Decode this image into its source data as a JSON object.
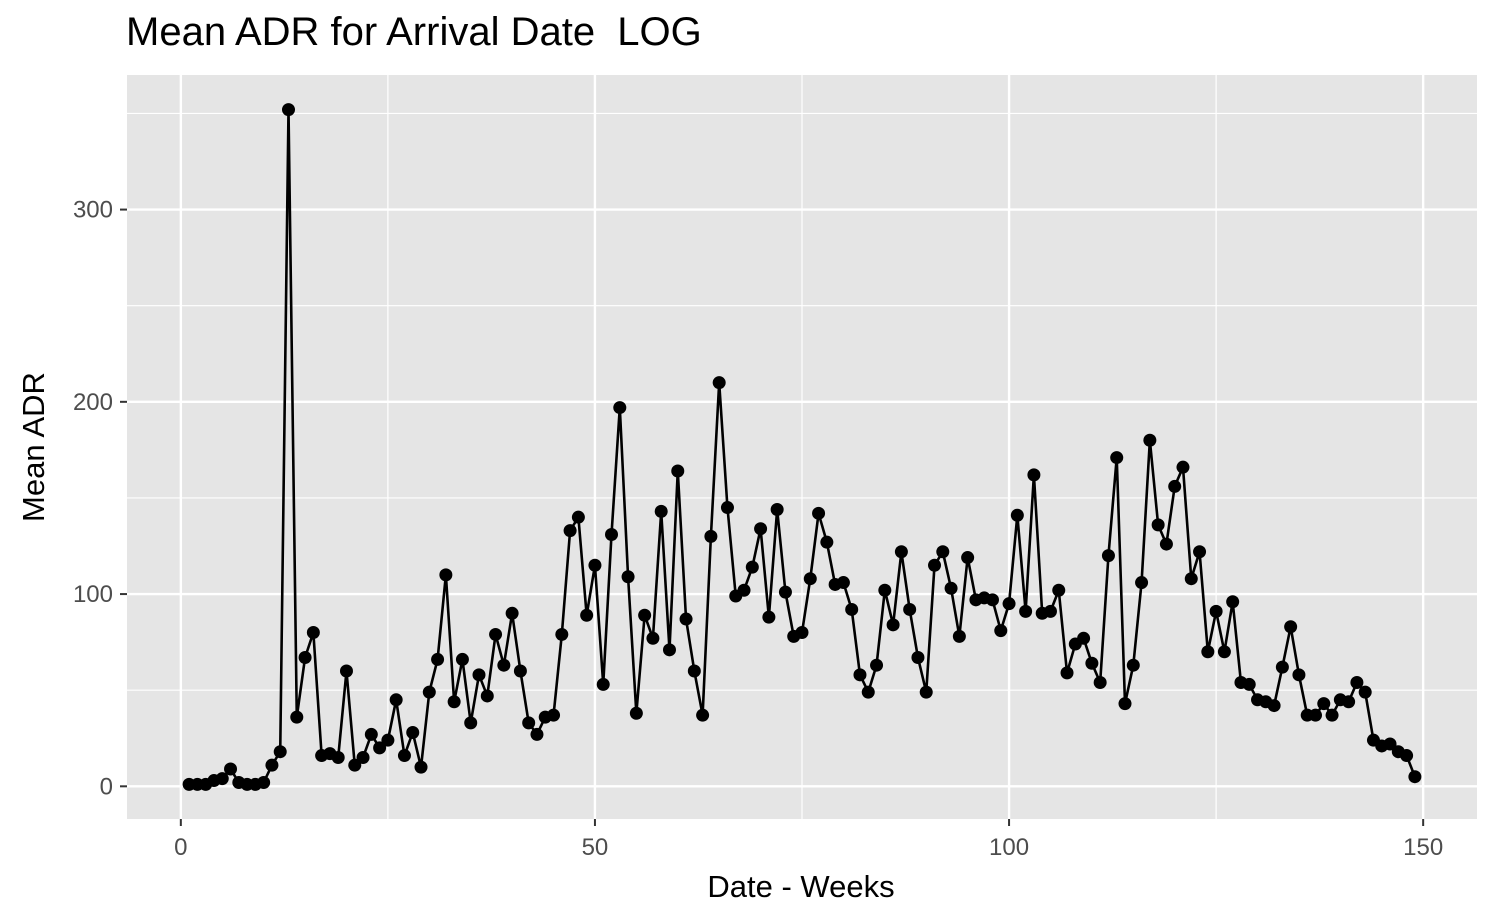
{
  "chart_data": {
    "type": "line",
    "title": "Mean ADR for Arrival Date  LOG",
    "xlabel": "Date - Weeks",
    "ylabel": "Mean ADR",
    "xlim": [
      -6.5,
      156.5
    ],
    "ylim": [
      -17,
      370
    ],
    "x_ticks": [
      0,
      50,
      100,
      150
    ],
    "y_ticks": [
      0,
      100,
      200,
      300
    ],
    "x_tick_labels": [
      "0",
      "50",
      "100",
      "150"
    ],
    "y_tick_labels": [
      "0",
      "100",
      "200",
      "300"
    ],
    "grid": true,
    "panel_color": "#e5e5e5",
    "grid_color": "#ffffff",
    "line_color": "#000000",
    "series": [
      {
        "x": [
          1,
          2,
          3,
          4,
          5,
          6,
          7,
          8,
          9,
          10,
          11,
          12,
          13,
          14,
          15,
          16,
          17,
          18,
          19,
          20,
          21,
          22,
          23,
          24,
          25,
          26,
          27,
          28,
          29,
          30,
          31,
          32,
          33,
          34,
          35,
          36,
          37,
          38,
          39,
          40,
          41,
          42,
          43,
          44,
          45,
          46,
          47,
          48,
          49,
          50,
          51,
          52,
          53,
          54,
          55,
          56,
          57,
          58,
          59,
          60,
          61,
          62,
          63,
          64,
          65,
          66,
          67,
          68,
          69,
          70,
          71,
          72,
          73,
          74,
          75,
          76,
          77,
          78,
          79,
          80,
          81,
          82,
          83,
          84,
          85,
          86,
          87,
          88,
          89,
          90,
          91,
          92,
          93,
          94,
          95,
          96,
          97,
          98,
          99,
          100,
          101,
          102,
          103,
          104,
          105,
          106,
          107,
          108,
          109,
          110,
          111,
          112,
          113,
          114,
          115,
          116,
          117,
          118,
          119,
          120,
          121,
          122,
          123,
          124,
          125,
          126,
          127,
          128,
          129,
          130,
          131,
          132,
          133,
          134,
          135,
          136,
          137,
          138,
          139,
          140,
          141,
          142,
          143,
          144,
          145,
          146,
          147,
          148,
          149
        ],
        "values": [
          1,
          1,
          1,
          3,
          4,
          9,
          2,
          1,
          1,
          2,
          11,
          18,
          352,
          36,
          67,
          80,
          16,
          17,
          15,
          60,
          11,
          15,
          27,
          20,
          24,
          45,
          16,
          28,
          10,
          49,
          66,
          110,
          44,
          66,
          33,
          58,
          47,
          79,
          63,
          90,
          60,
          33,
          27,
          36,
          37,
          79,
          133,
          140,
          89,
          115,
          53,
          131,
          197,
          109,
          38,
          89,
          77,
          143,
          71,
          164,
          87,
          60,
          37,
          130,
          210,
          145,
          99,
          102,
          114,
          134,
          88,
          144,
          101,
          78,
          80,
          108,
          142,
          127,
          105,
          106,
          92,
          58,
          49,
          63,
          102,
          84,
          122,
          92,
          67,
          49,
          115,
          122,
          103,
          78,
          119,
          97,
          98,
          97,
          81,
          95,
          141,
          91,
          162,
          90,
          91,
          102,
          59,
          74,
          77,
          64,
          54,
          120,
          171,
          43,
          63,
          106,
          180,
          136,
          126,
          156,
          166,
          108,
          122,
          70,
          91,
          70,
          96,
          54,
          53,
          45,
          44,
          42,
          62,
          83,
          58,
          37,
          37,
          43,
          37,
          45,
          44,
          54,
          49,
          24,
          21,
          22,
          18,
          16,
          5
        ]
      }
    ]
  }
}
